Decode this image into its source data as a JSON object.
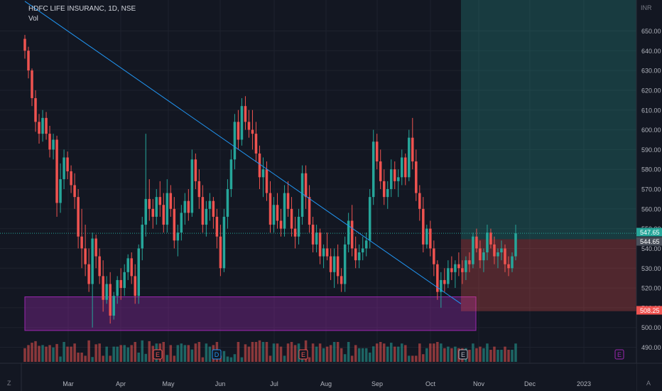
{
  "legend": {
    "title": "HDFC LIFE INSURANC, 1D, NSE",
    "volume_label": "Vol"
  },
  "corner": {
    "bottom_left": "Z",
    "bottom_right": "A",
    "currency": "INR"
  },
  "colors": {
    "background": "#131722",
    "up": "#26a69a",
    "down": "#ef5350",
    "grid": "#1e222d",
    "trendline": "#2196f3",
    "zone": "#9c27b0",
    "target_zone": "#26a69a",
    "stop_zone": "#ef5350"
  },
  "chart_data": {
    "type": "candlestick",
    "title": "HDFC LIFE INSURANC, 1D, NSE",
    "currency": "INR",
    "ylim": [
      483,
      660
    ],
    "y_ticks": [
      490,
      500,
      510,
      520,
      530,
      540,
      550,
      560,
      570,
      580,
      590,
      600,
      610,
      620,
      630,
      640,
      650
    ],
    "x_ticks": [
      "Mar",
      "Apr",
      "May",
      "Jun",
      "Jul",
      "Aug",
      "Sep",
      "Oct",
      "Nov",
      "Dec",
      "2023"
    ],
    "price_labels": [
      {
        "text": "547.65",
        "kind": "last"
      },
      {
        "text": "544.65",
        "kind": "entry"
      },
      {
        "text": "508.25",
        "kind": "stop"
      }
    ],
    "markers": [
      "E",
      "D",
      "E",
      "E",
      "E"
    ],
    "trendline": {
      "from": "2022-02-01",
      "from_price": 665,
      "to": "2022-10-17",
      "to_price": 512
    },
    "support_zone": {
      "from": "2022-02-01",
      "to": "2022-10-18",
      "top": 515.5,
      "bottom": 498.5
    },
    "position": {
      "entry": 544.65,
      "target": 660,
      "stop": 508.25,
      "from": "2022-10-17"
    },
    "candles": [
      [
        1,
        646,
        648,
        636,
        640
      ],
      [
        2,
        640,
        642,
        626,
        630
      ],
      [
        3,
        630,
        631,
        612,
        616
      ],
      [
        4,
        616,
        620,
        599,
        604
      ],
      [
        5,
        604,
        608,
        593,
        598
      ],
      [
        6,
        598,
        610,
        594,
        606
      ],
      [
        7,
        606,
        609,
        595,
        598
      ],
      [
        8,
        598,
        602,
        586,
        590
      ],
      [
        9,
        590,
        598,
        585,
        595
      ],
      [
        10,
        595,
        597,
        556,
        563
      ],
      [
        11,
        563,
        583,
        558,
        575
      ],
      [
        12,
        575,
        590,
        570,
        586
      ],
      [
        13,
        586,
        589,
        575,
        579
      ],
      [
        14,
        579,
        582,
        568,
        572
      ],
      [
        15,
        572,
        578,
        560,
        566
      ],
      [
        16,
        566,
        570,
        540,
        546
      ],
      [
        17,
        546,
        560,
        530,
        540
      ],
      [
        18,
        540,
        552,
        526,
        532
      ],
      [
        19,
        532,
        540,
        518,
        522
      ],
      [
        20,
        522,
        548,
        500,
        545
      ],
      [
        21,
        545,
        547,
        530,
        536
      ],
      [
        22,
        536,
        540,
        522,
        526
      ],
      [
        23,
        526,
        534,
        508,
        514
      ],
      [
        24,
        514,
        526,
        512,
        522
      ],
      [
        25,
        522,
        528,
        502,
        506
      ],
      [
        26,
        506,
        518,
        504,
        516
      ],
      [
        27,
        516,
        526,
        512,
        524
      ],
      [
        28,
        524,
        530,
        514,
        520
      ],
      [
        29,
        520,
        532,
        516,
        528
      ],
      [
        30,
        528,
        537,
        524,
        535
      ],
      [
        31,
        535,
        538,
        522,
        526
      ],
      [
        32,
        526,
        532,
        512,
        516
      ],
      [
        33,
        516,
        542,
        512,
        540
      ],
      [
        34,
        540,
        556,
        534,
        552
      ],
      [
        35,
        552,
        598,
        546,
        565
      ],
      [
        36,
        565,
        575,
        554,
        560
      ],
      [
        37,
        560,
        565,
        550,
        556
      ],
      [
        38,
        556,
        570,
        552,
        566
      ],
      [
        39,
        566,
        574,
        556,
        562
      ],
      [
        40,
        562,
        568,
        548,
        552
      ],
      [
        41,
        552,
        575,
        548,
        568
      ],
      [
        42,
        568,
        572,
        556,
        560
      ],
      [
        43,
        560,
        566,
        540,
        544
      ],
      [
        44,
        544,
        552,
        536,
        548
      ],
      [
        45,
        548,
        562,
        544,
        558
      ],
      [
        46,
        558,
        568,
        552,
        564
      ],
      [
        47,
        564,
        570,
        554,
        558
      ],
      [
        48,
        558,
        590,
        556,
        585
      ],
      [
        49,
        585,
        588,
        570,
        574
      ],
      [
        50,
        574,
        580,
        560,
        566
      ],
      [
        51,
        566,
        572,
        548,
        552
      ],
      [
        52,
        552,
        564,
        546,
        560
      ],
      [
        53,
        560,
        568,
        554,
        564
      ],
      [
        54,
        564,
        566,
        550,
        556
      ],
      [
        55,
        556,
        560,
        540,
        546
      ],
      [
        56,
        546,
        552,
        526,
        530
      ],
      [
        57,
        530,
        560,
        528,
        556
      ],
      [
        58,
        556,
        575,
        550,
        570
      ],
      [
        59,
        570,
        590,
        566,
        585
      ],
      [
        60,
        585,
        608,
        580,
        604
      ],
      [
        61,
        604,
        610,
        590,
        595
      ],
      [
        62,
        595,
        616,
        592,
        612
      ],
      [
        63,
        612,
        617,
        600,
        604
      ],
      [
        64,
        604,
        610,
        596,
        600
      ],
      [
        65,
        600,
        610,
        590,
        598
      ],
      [
        66,
        598,
        604,
        584,
        588
      ],
      [
        67,
        588,
        592,
        570,
        576
      ],
      [
        68,
        576,
        586,
        566,
        580
      ],
      [
        69,
        580,
        584,
        564,
        568
      ],
      [
        70,
        568,
        574,
        548,
        552
      ],
      [
        71,
        552,
        566,
        548,
        562
      ],
      [
        72,
        562,
        568,
        550,
        554
      ],
      [
        73,
        554,
        560,
        546,
        550
      ],
      [
        74,
        550,
        572,
        546,
        568
      ],
      [
        75,
        568,
        574,
        556,
        560
      ],
      [
        76,
        560,
        566,
        546,
        550
      ],
      [
        77,
        550,
        556,
        540,
        546
      ],
      [
        78,
        546,
        560,
        542,
        556
      ],
      [
        79,
        556,
        582,
        552,
        578
      ],
      [
        80,
        578,
        582,
        560,
        566
      ],
      [
        81,
        566,
        572,
        548,
        552
      ],
      [
        82,
        552,
        556,
        538,
        542
      ],
      [
        83,
        542,
        552,
        538,
        548
      ],
      [
        84,
        548,
        550,
        532,
        536
      ],
      [
        85,
        536,
        542,
        530,
        540
      ],
      [
        86,
        540,
        548,
        534,
        536
      ],
      [
        87,
        536,
        540,
        524,
        528
      ],
      [
        88,
        528,
        540,
        520,
        536
      ],
      [
        89,
        536,
        542,
        522,
        526
      ],
      [
        90,
        526,
        530,
        518,
        522
      ],
      [
        91,
        522,
        546,
        518,
        542
      ],
      [
        92,
        542,
        558,
        538,
        554
      ],
      [
        93,
        554,
        562,
        536,
        540
      ],
      [
        94,
        540,
        546,
        530,
        534
      ],
      [
        95,
        534,
        542,
        530,
        538
      ],
      [
        96,
        538,
        546,
        534,
        540
      ],
      [
        97,
        540,
        548,
        536,
        544
      ],
      [
        98,
        544,
        570,
        540,
        566
      ],
      [
        99,
        566,
        600,
        562,
        594
      ],
      [
        100,
        594,
        598,
        580,
        584
      ],
      [
        101,
        584,
        590,
        570,
        574
      ],
      [
        102,
        574,
        580,
        562,
        566
      ],
      [
        103,
        566,
        574,
        560,
        570
      ],
      [
        104,
        570,
        585,
        566,
        580
      ],
      [
        105,
        580,
        584,
        570,
        574
      ],
      [
        106,
        574,
        580,
        566,
        576
      ],
      [
        107,
        576,
        590,
        572,
        586
      ],
      [
        108,
        586,
        588,
        572,
        576
      ],
      [
        109,
        576,
        600,
        574,
        596
      ],
      [
        110,
        596,
        606,
        580,
        584
      ],
      [
        111,
        584,
        590,
        564,
        568
      ],
      [
        112,
        568,
        572,
        554,
        560
      ],
      [
        113,
        560,
        566,
        538,
        542
      ],
      [
        114,
        542,
        552,
        540,
        550
      ],
      [
        115,
        550,
        554,
        536,
        540
      ],
      [
        116,
        540,
        544,
        526,
        532
      ],
      [
        117,
        532,
        534,
        514,
        518
      ],
      [
        118,
        518,
        528,
        510,
        524
      ],
      [
        119,
        524,
        530,
        518,
        522
      ],
      [
        120,
        522,
        534,
        520,
        530
      ],
      [
        121,
        530,
        536,
        524,
        528
      ],
      [
        122,
        528,
        534,
        520,
        532
      ],
      [
        123,
        532,
        538,
        526,
        530
      ],
      [
        124,
        530,
        534,
        522,
        528
      ],
      [
        125,
        528,
        536,
        524,
        534
      ],
      [
        126,
        534,
        538,
        528,
        532
      ],
      [
        127,
        532,
        548,
        530,
        546
      ],
      [
        128,
        546,
        550,
        538,
        540
      ],
      [
        129,
        540,
        544,
        530,
        534
      ],
      [
        130,
        534,
        540,
        528,
        538
      ],
      [
        131,
        538,
        552,
        534,
        548
      ],
      [
        132,
        548,
        550,
        540,
        542
      ],
      [
        133,
        542,
        546,
        532,
        536
      ],
      [
        134,
        536,
        540,
        530,
        538
      ],
      [
        135,
        538,
        544,
        534,
        540
      ],
      [
        136,
        540,
        542,
        528,
        532
      ],
      [
        137,
        532,
        536,
        526,
        530
      ],
      [
        138,
        530,
        538,
        528,
        536
      ],
      [
        139,
        536,
        552,
        534,
        547.65
      ]
    ]
  }
}
